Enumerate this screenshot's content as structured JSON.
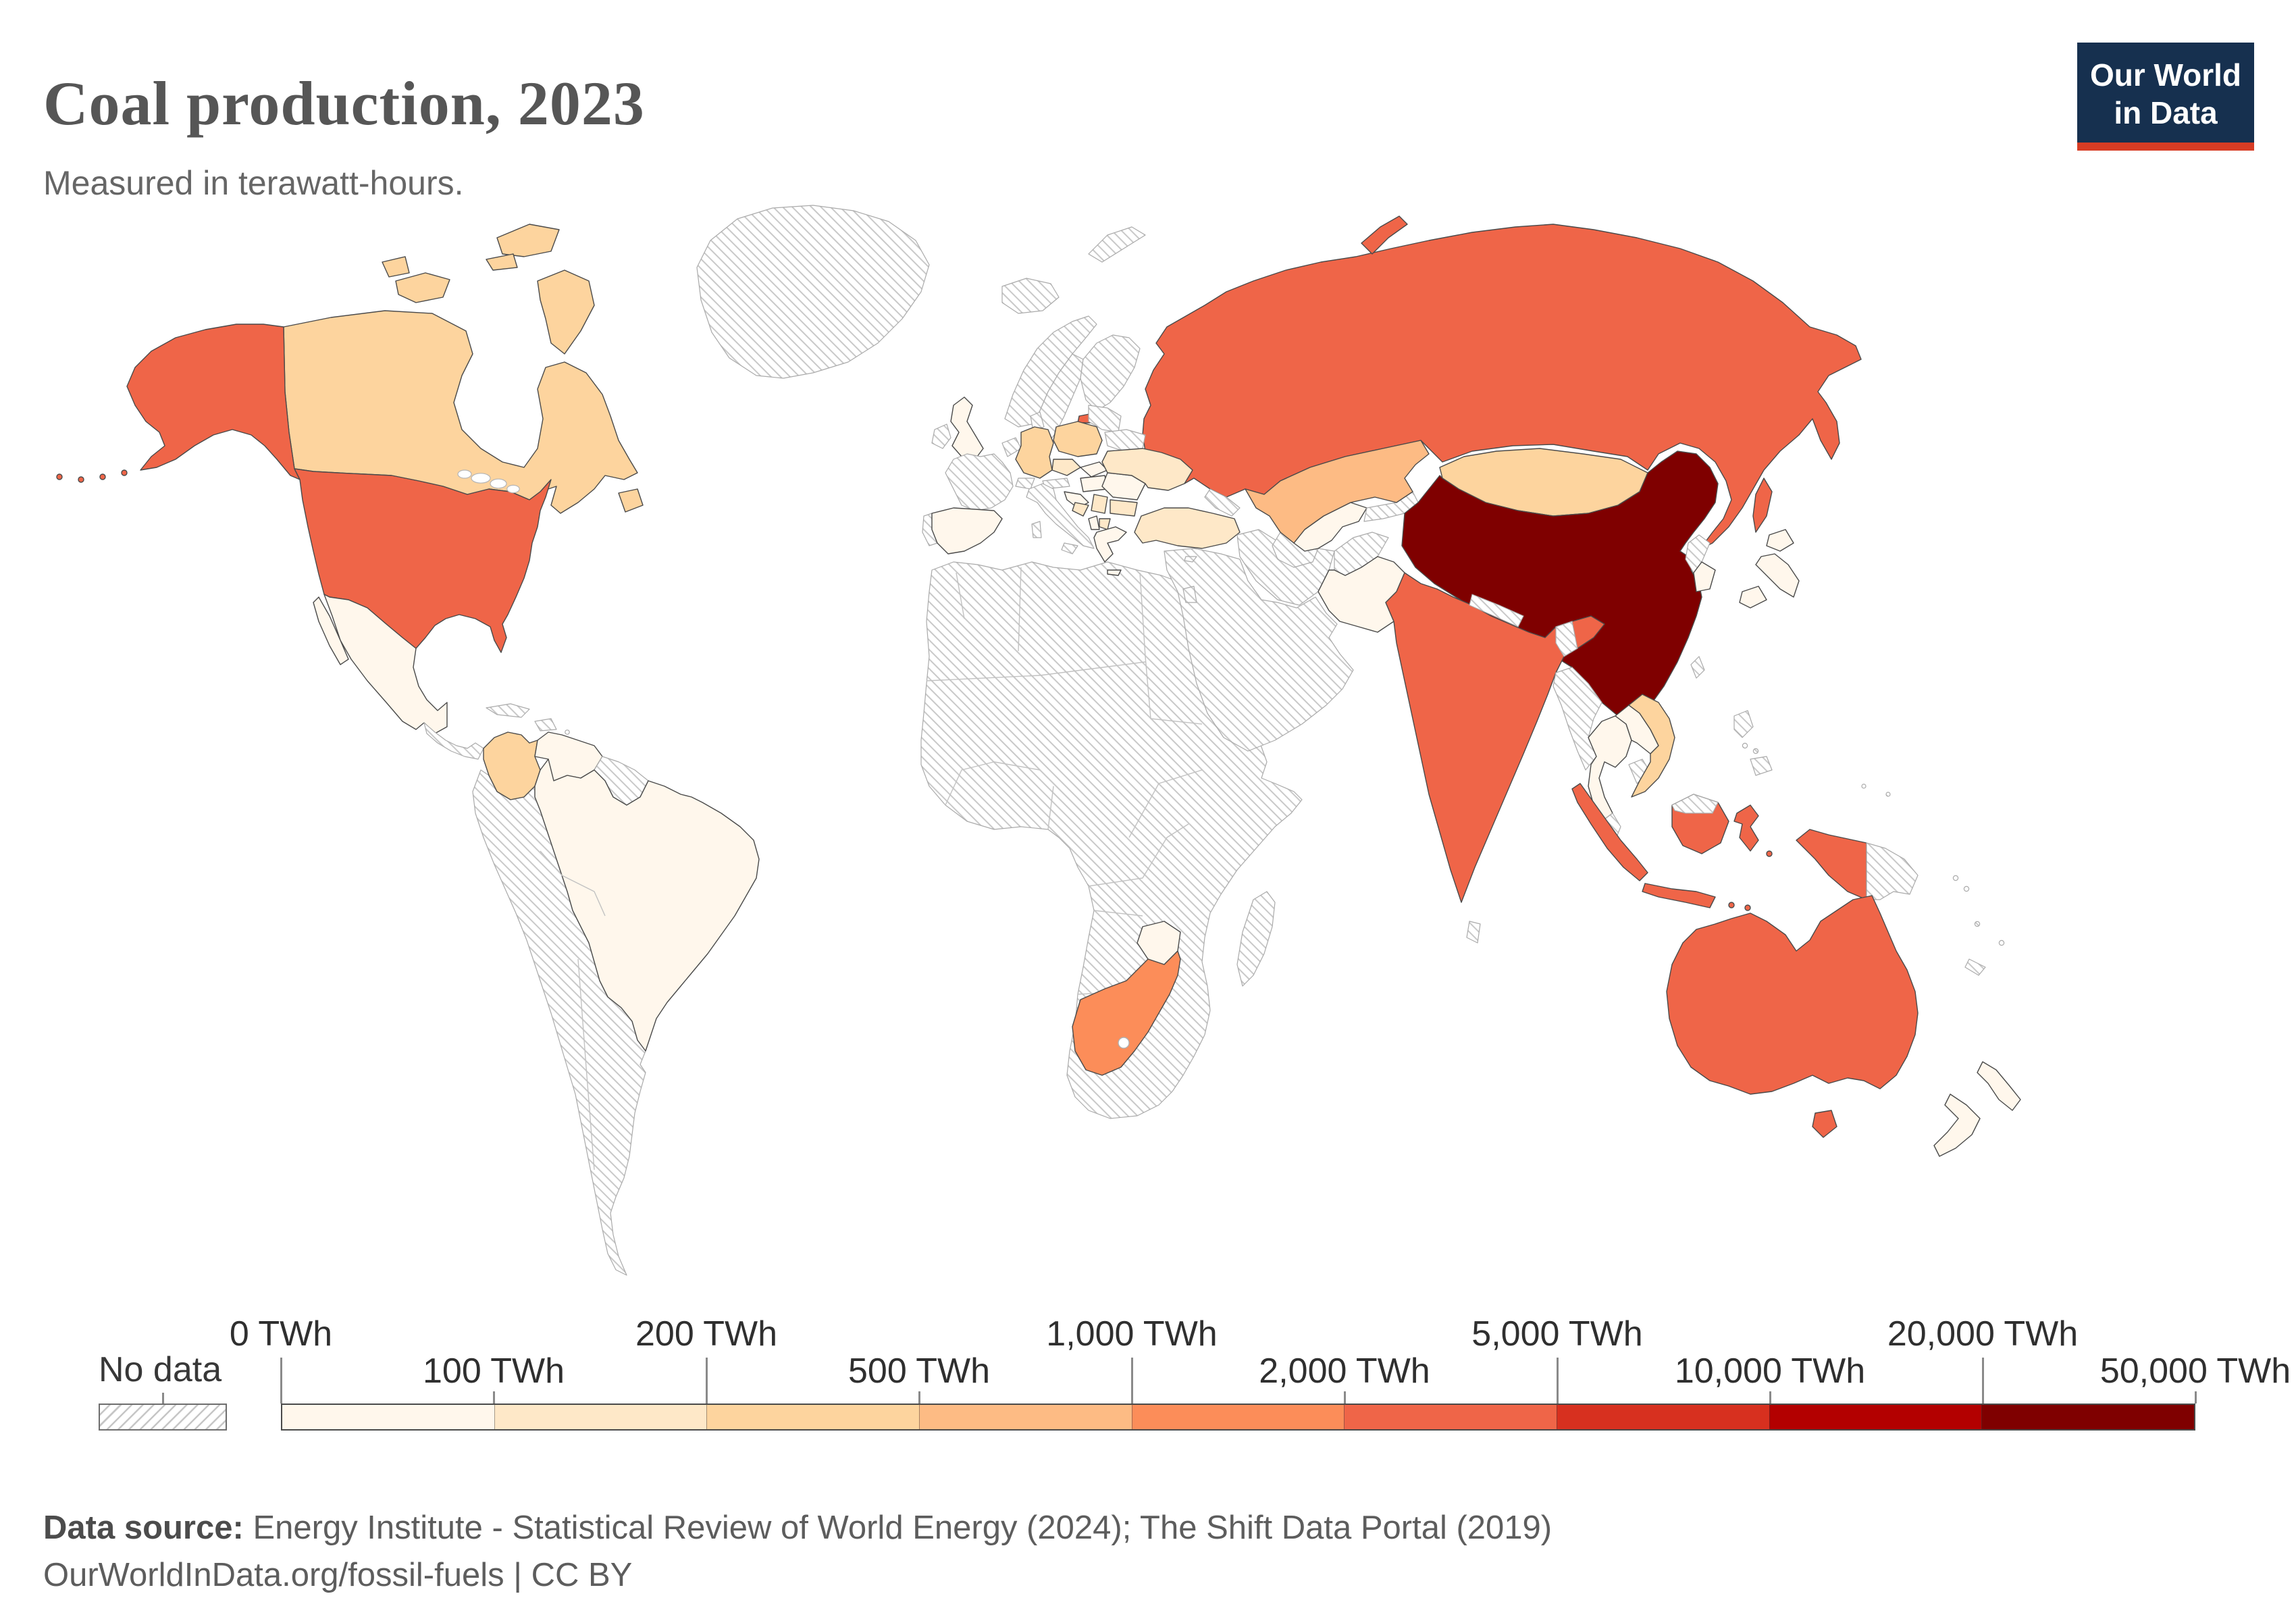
{
  "header": {
    "title": "Coal production, 2023",
    "subtitle": "Measured in terawatt-hours.",
    "logo": {
      "line1": "Our World",
      "line2": "in Data",
      "bg_color": "#16304f",
      "accent_color": "#d73c24"
    }
  },
  "legend": {
    "no_data_label": "No data",
    "boundary_labels": [
      "0 TWh",
      "100 TWh",
      "200 TWh",
      "500 TWh",
      "1,000 TWh",
      "2,000 TWh",
      "5,000 TWh",
      "10,000 TWh",
      "20,000 TWh",
      "50,000 TWh"
    ],
    "bin_colors": [
      "#fff7ec",
      "#fee8c8",
      "#fdd49e",
      "#fdbb84",
      "#fc8d59",
      "#ef6548",
      "#d7301f",
      "#b30000",
      "#7f0000"
    ]
  },
  "footer": {
    "source_label": "Data source:",
    "source_text": " Energy Institute - Statistical Review of World Energy (2024); The Shift Data Portal (2019)",
    "license_line": "OurWorldInData.org/fossil-fuels | CC BY"
  },
  "chart_data": {
    "type": "choropleth",
    "title": "Coal production, 2023",
    "unit": "TWh",
    "bins": [
      {
        "range": "0–100 TWh",
        "color": "#fff7ec"
      },
      {
        "range": "100–200 TWh",
        "color": "#fee8c8"
      },
      {
        "range": "200–500 TWh",
        "color": "#fdd49e"
      },
      {
        "range": "500–1,000 TWh",
        "color": "#fdbb84"
      },
      {
        "range": "1,000–2,000 TWh",
        "color": "#fc8d59"
      },
      {
        "range": "2,000–5,000 TWh",
        "color": "#ef6548"
      },
      {
        "range": "5,000–10,000 TWh",
        "color": "#d7301f"
      },
      {
        "range": "10,000–20,000 TWh",
        "color": "#b30000"
      },
      {
        "range": "20,000–50,000 TWh",
        "color": "#7f0000"
      }
    ],
    "countries": [
      {
        "id": "china",
        "name": "China",
        "bin": "20,000–50,000 TWh"
      },
      {
        "id": "united-states",
        "name": "United States",
        "bin": "2,000–5,000 TWh"
      },
      {
        "id": "russia",
        "name": "Russia",
        "bin": "2,000–5,000 TWh"
      },
      {
        "id": "india",
        "name": "India",
        "bin": "2,000–5,000 TWh"
      },
      {
        "id": "australia",
        "name": "Australia",
        "bin": "2,000–5,000 TWh"
      },
      {
        "id": "indonesia",
        "name": "Indonesia",
        "bin": "2,000–5,000 TWh"
      },
      {
        "id": "south-africa",
        "name": "South Africa",
        "bin": "1,000–2,000 TWh"
      },
      {
        "id": "kazakhstan",
        "name": "Kazakhstan",
        "bin": "500–1,000 TWh"
      },
      {
        "id": "canada",
        "name": "Canada",
        "bin": "200–500 TWh"
      },
      {
        "id": "germany",
        "name": "Germany",
        "bin": "200–500 TWh"
      },
      {
        "id": "poland",
        "name": "Poland",
        "bin": "200–500 TWh"
      },
      {
        "id": "colombia",
        "name": "Colombia",
        "bin": "200–500 TWh"
      },
      {
        "id": "vietnam",
        "name": "Vietnam",
        "bin": "200–500 TWh"
      },
      {
        "id": "mongolia",
        "name": "Mongolia",
        "bin": "200–500 TWh"
      },
      {
        "id": "czechia",
        "name": "Czechia",
        "bin": "100–200 TWh"
      },
      {
        "id": "ukraine",
        "name": "Ukraine",
        "bin": "100–200 TWh"
      },
      {
        "id": "turkey",
        "name": "Turkey",
        "bin": "100–200 TWh"
      },
      {
        "id": "bulgaria",
        "name": "Bulgaria",
        "bin": "100–200 TWh"
      },
      {
        "id": "serbia",
        "name": "Serbia",
        "bin": "100–200 TWh"
      },
      {
        "id": "bosnia",
        "name": "Bosnia and Herzegovina",
        "bin": "100–200 TWh"
      },
      {
        "id": "north-macedonia",
        "name": "North Macedonia",
        "bin": "100–200 TWh"
      },
      {
        "id": "mexico",
        "name": "Mexico",
        "bin": "0–100 TWh"
      },
      {
        "id": "venezuela",
        "name": "Venezuela",
        "bin": "0–100 TWh"
      },
      {
        "id": "brazil",
        "name": "Brazil",
        "bin": "0–100 TWh"
      },
      {
        "id": "united-kingdom",
        "name": "United Kingdom",
        "bin": "0–100 TWh"
      },
      {
        "id": "spain",
        "name": "Spain",
        "bin": "0–100 TWh"
      },
      {
        "id": "slovakia",
        "name": "Slovakia",
        "bin": "0–100 TWh"
      },
      {
        "id": "hungary",
        "name": "Hungary",
        "bin": "0–100 TWh"
      },
      {
        "id": "romania",
        "name": "Romania",
        "bin": "0–100 TWh"
      },
      {
        "id": "croatia",
        "name": "Croatia",
        "bin": "0–100 TWh"
      },
      {
        "id": "greece",
        "name": "Greece",
        "bin": "0–100 TWh"
      },
      {
        "id": "albania",
        "name": "Albania",
        "bin": "0–100 TWh"
      },
      {
        "id": "zimbabwe",
        "name": "Zimbabwe",
        "bin": "0–100 TWh"
      },
      {
        "id": "uzbekistan",
        "name": "Uzbekistan",
        "bin": "0–100 TWh"
      },
      {
        "id": "pakistan",
        "name": "Pakistan",
        "bin": "0–100 TWh"
      },
      {
        "id": "thailand",
        "name": "Thailand",
        "bin": "0–100 TWh"
      },
      {
        "id": "laos",
        "name": "Laos",
        "bin": "0–100 TWh"
      },
      {
        "id": "japan",
        "name": "Japan",
        "bin": "0–100 TWh"
      },
      {
        "id": "south-korea",
        "name": "South Korea",
        "bin": "0–100 TWh"
      },
      {
        "id": "new-zealand",
        "name": "New Zealand",
        "bin": "0–100 TWh"
      }
    ],
    "no_data_regions": [
      "Greenland",
      "Iceland",
      "Ireland",
      "France",
      "Portugal",
      "Italy",
      "Norway",
      "Sweden",
      "Finland",
      "Denmark",
      "Baltic states",
      "Belarus",
      "Benelux",
      "Austria",
      "Switzerland",
      "Moldova",
      "North Africa",
      "Sub-Saharan Africa",
      "Madagascar",
      "Middle East",
      "Iran",
      "Afghanistan",
      "Turkmenistan",
      "Kyrgyzstan",
      "Tajikistan",
      "Caucasus",
      "Myanmar",
      "Cambodia",
      "Malaysia",
      "Nepal",
      "Bangladesh",
      "Sri Lanka",
      "North Korea",
      "Taiwan",
      "Philippines",
      "Papua New Guinea",
      "Cuba",
      "Hispaniola",
      "Central America",
      "Peru",
      "Ecuador",
      "Bolivia",
      "Chile",
      "Argentina",
      "Paraguay",
      "Uruguay",
      "Guyanas",
      "Svalbard",
      "New Caledonia",
      "Pacific islands"
    ]
  }
}
